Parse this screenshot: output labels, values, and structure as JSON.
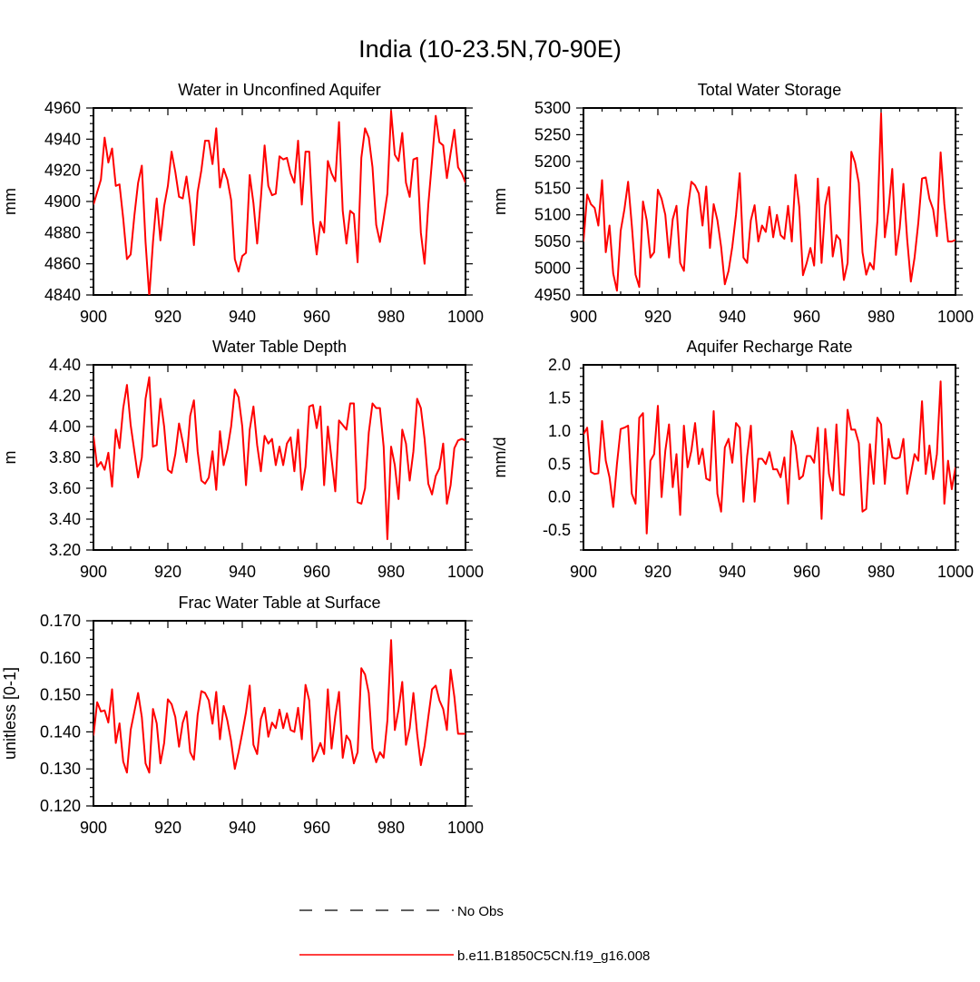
{
  "figure": {
    "title": "India (10-23.5N,70-90E)",
    "legend": [
      {
        "label": "No Obs",
        "color": "#000000",
        "style": "dashed"
      },
      {
        "label": "b.e11.B1850C5CN.f19_g16.008",
        "color": "#ff0000",
        "style": "solid"
      }
    ]
  },
  "chart_data": [
    {
      "type": "line",
      "title": "Water in Unconfined Aquifer",
      "xlabel": "",
      "ylabel": "mm",
      "xlim": [
        900,
        1000
      ],
      "ylim": [
        4840,
        4960
      ],
      "xticks": [
        900,
        920,
        940,
        960,
        980,
        1000
      ],
      "xtick_labels": [
        "900",
        "920",
        "940",
        "960",
        "980",
        "1000"
      ],
      "yticks": [
        4840,
        4860,
        4880,
        4900,
        4920,
        4940,
        4960
      ],
      "ytick_labels": [
        "4840",
        "4860",
        "4880",
        "4900",
        "4920",
        "4940",
        "4960"
      ],
      "x_start": 900,
      "series": [
        {
          "name": "b.e11.B1850C5CN.f19_g16.008",
          "color": "#ff0000",
          "values": [
            4898,
            4906,
            4914,
            4941,
            4925,
            4934,
            4910,
            4911,
            4889,
            4863,
            4866,
            4891,
            4912,
            4923,
            4874,
            4839,
            4874,
            4902,
            4875,
            4897,
            4910,
            4932,
            4919,
            4903,
            4902,
            4916,
            4898,
            4872,
            4906,
            4920,
            4939,
            4939,
            4924,
            4947,
            4909,
            4921,
            4914,
            4901,
            4863,
            4855,
            4865,
            4867,
            4917,
            4899,
            4873,
            4902,
            4936,
            4910,
            4904,
            4905,
            4929,
            4927,
            4928,
            4918,
            4912,
            4939,
            4898,
            4932,
            4932,
            4887,
            4866,
            4887,
            4880,
            4926,
            4918,
            4913,
            4951,
            4894,
            4873,
            4894,
            4892,
            4861,
            4928,
            4947,
            4941,
            4922,
            4885,
            4874,
            4889,
            4905,
            4958,
            4930,
            4926,
            4944,
            4912,
            4903,
            4927,
            4928,
            4880,
            4860,
            4898,
            4926,
            4955,
            4938,
            4936,
            4915,
            4931,
            4946,
            4922,
            4918,
            4912
          ]
        }
      ]
    },
    {
      "type": "line",
      "title": "Total Water Storage",
      "xlabel": "",
      "ylabel": "mm",
      "xlim": [
        900,
        1000
      ],
      "ylim": [
        4950,
        5300
      ],
      "xticks": [
        900,
        920,
        940,
        960,
        980,
        1000
      ],
      "xtick_labels": [
        "900",
        "920",
        "940",
        "960",
        "980",
        "1000"
      ],
      "yticks": [
        4950,
        5000,
        5050,
        5100,
        5150,
        5200,
        5250,
        5300
      ],
      "ytick_labels": [
        "4950",
        "5000",
        "5050",
        "5100",
        "5150",
        "5200",
        "5250",
        "5300"
      ],
      "x_start": 900,
      "series": [
        {
          "name": "b.e11.B1850C5CN.f19_g16.008",
          "color": "#ff0000",
          "values": [
            5050,
            5138,
            5120,
            5113,
            5080,
            5165,
            5030,
            5080,
            4990,
            4958,
            5070,
            5110,
            5162,
            5080,
            4988,
            4965,
            5125,
            5090,
            5020,
            5030,
            5147,
            5130,
            5100,
            5020,
            5092,
            5117,
            5010,
            4995,
            5110,
            5162,
            5155,
            5140,
            5080,
            5153,
            5038,
            5120,
            5090,
            5040,
            4970,
            4995,
            5040,
            5100,
            5178,
            5020,
            5010,
            5090,
            5118,
            5050,
            5080,
            5068,
            5115,
            5058,
            5100,
            5062,
            5055,
            5117,
            5050,
            5175,
            5115,
            4987,
            5010,
            5038,
            5005,
            5168,
            5010,
            5118,
            5152,
            5022,
            5062,
            5053,
            4978,
            5010,
            5218,
            5198,
            5160,
            5030,
            4988,
            5010,
            4998,
            5088,
            5290,
            5058,
            5110,
            5186,
            5025,
            5075,
            5158,
            5055,
            4975,
            5020,
            5085,
            5168,
            5170,
            5130,
            5110,
            5060,
            5217,
            5120,
            5050,
            5050,
            5053
          ]
        }
      ]
    },
    {
      "type": "line",
      "title": "Water Table Depth",
      "xlabel": "",
      "ylabel": "m",
      "xlim": [
        900,
        1000
      ],
      "ylim": [
        3.2,
        4.4
      ],
      "xticks": [
        900,
        920,
        940,
        960,
        980,
        1000
      ],
      "xtick_labels": [
        "900",
        "920",
        "940",
        "960",
        "980",
        "1000"
      ],
      "yticks": [
        3.2,
        3.4,
        3.6,
        3.8,
        4.0,
        4.2,
        4.4
      ],
      "ytick_labels": [
        "3.20",
        "3.40",
        "3.60",
        "3.80",
        "4.00",
        "4.20",
        "4.40"
      ],
      "x_start": 900,
      "series": [
        {
          "name": "b.e11.B1850C5CN.f19_g16.008",
          "color": "#ff0000",
          "values": [
            3.94,
            3.74,
            3.77,
            3.72,
            3.83,
            3.61,
            3.98,
            3.86,
            4.12,
            4.27,
            4.01,
            3.84,
            3.67,
            3.8,
            4.18,
            4.32,
            3.87,
            3.88,
            4.18,
            4.0,
            3.72,
            3.7,
            3.82,
            4.02,
            3.9,
            3.77,
            4.07,
            4.17,
            3.84,
            3.65,
            3.63,
            3.67,
            3.84,
            3.59,
            3.97,
            3.75,
            3.85,
            4.0,
            4.24,
            4.19,
            4.0,
            3.62,
            3.98,
            4.13,
            3.88,
            3.71,
            3.94,
            3.89,
            3.92,
            3.75,
            3.87,
            3.75,
            3.89,
            3.93,
            3.71,
            3.98,
            3.59,
            3.74,
            4.13,
            4.14,
            3.99,
            4.13,
            3.62,
            4.0,
            3.79,
            3.58,
            4.04,
            4.01,
            3.98,
            4.15,
            4.15,
            3.51,
            3.5,
            3.6,
            3.96,
            4.15,
            4.12,
            4.12,
            3.87,
            3.27,
            3.87,
            3.75,
            3.53,
            3.98,
            3.89,
            3.65,
            3.84,
            4.18,
            4.12,
            3.92,
            3.63,
            3.56,
            3.68,
            3.73,
            3.89,
            3.5,
            3.62,
            3.86,
            3.91,
            3.92,
            3.91
          ]
        }
      ]
    },
    {
      "type": "line",
      "title": "Aquifer Recharge Rate",
      "xlabel": "",
      "ylabel": "mm/d",
      "xlim": [
        900,
        1000
      ],
      "ylim": [
        -0.8,
        2.0
      ],
      "xticks": [
        900,
        920,
        940,
        960,
        980,
        1000
      ],
      "xtick_labels": [
        "900",
        "920",
        "940",
        "960",
        "980",
        "1000"
      ],
      "yticks": [
        -0.5,
        0.0,
        0.5,
        1.0,
        1.5,
        2.0
      ],
      "ytick_labels": [
        "-0.5",
        "0.0",
        "0.5",
        "1.0",
        "1.5",
        "2.0"
      ],
      "x_start": 900,
      "series": [
        {
          "name": "b.e11.B1850C5CN.f19_g16.008",
          "color": "#ff0000",
          "values": [
            0.95,
            1.05,
            0.38,
            0.35,
            0.36,
            1.15,
            0.55,
            0.3,
            -0.15,
            0.5,
            1.03,
            1.05,
            1.08,
            0.05,
            -0.1,
            1.2,
            1.27,
            -0.55,
            0.55,
            0.65,
            1.38,
            0.0,
            0.7,
            1.1,
            0.15,
            0.65,
            -0.27,
            1.08,
            0.45,
            0.7,
            1.12,
            0.5,
            0.73,
            0.28,
            0.25,
            1.3,
            0.05,
            -0.22,
            0.75,
            0.88,
            0.52,
            1.12,
            1.05,
            -0.07,
            0.62,
            1.08,
            -0.07,
            0.58,
            0.58,
            0.5,
            0.68,
            0.42,
            0.42,
            0.3,
            0.6,
            -0.1,
            1.0,
            0.78,
            0.27,
            0.32,
            0.62,
            0.62,
            0.52,
            1.05,
            -0.33,
            1.03,
            0.35,
            0.1,
            1.1,
            0.05,
            0.03,
            1.32,
            1.02,
            1.02,
            0.82,
            -0.22,
            -0.18,
            0.8,
            0.2,
            1.2,
            1.1,
            0.2,
            0.88,
            0.6,
            0.58,
            0.6,
            0.88,
            0.05,
            0.35,
            0.65,
            0.55,
            1.45,
            0.35,
            0.78,
            0.27,
            0.65,
            1.75,
            -0.1,
            0.55,
            0.12,
            0.45
          ]
        }
      ]
    },
    {
      "type": "line",
      "title": "Frac Water Table at Surface",
      "xlabel": "",
      "ylabel": "unitless [0-1]",
      "xlim": [
        900,
        1000
      ],
      "ylim": [
        0.12,
        0.17
      ],
      "xticks": [
        900,
        920,
        940,
        960,
        980,
        1000
      ],
      "xtick_labels": [
        "900",
        "920",
        "940",
        "960",
        "980",
        "1000"
      ],
      "yticks": [
        0.12,
        0.13,
        0.14,
        0.15,
        0.16,
        0.17
      ],
      "ytick_labels": [
        "0.120",
        "0.130",
        "0.140",
        "0.150",
        "0.160",
        "0.170"
      ],
      "x_start": 900,
      "series": [
        {
          "name": "b.e11.B1850C5CN.f19_g16.008",
          "color": "#ff0000",
          "values": [
            0.139,
            0.148,
            0.1455,
            0.1458,
            0.1425,
            0.1515,
            0.137,
            0.1423,
            0.132,
            0.129,
            0.1405,
            0.1455,
            0.1505,
            0.144,
            0.1315,
            0.129,
            0.1462,
            0.1423,
            0.1315,
            0.137,
            0.1488,
            0.1475,
            0.144,
            0.136,
            0.1425,
            0.1455,
            0.1345,
            0.1325,
            0.1445,
            0.151,
            0.1505,
            0.1485,
            0.1422,
            0.1508,
            0.138,
            0.147,
            0.143,
            0.1375,
            0.13,
            0.1345,
            0.1397,
            0.1453,
            0.1525,
            0.1365,
            0.134,
            0.1435,
            0.1465,
            0.1387,
            0.1425,
            0.141,
            0.146,
            0.141,
            0.145,
            0.1405,
            0.14,
            0.1465,
            0.138,
            0.1527,
            0.1485,
            0.132,
            0.1343,
            0.137,
            0.134,
            0.1515,
            0.1355,
            0.1442,
            0.1508,
            0.133,
            0.139,
            0.1375,
            0.1315,
            0.1345,
            0.1572,
            0.1555,
            0.1505,
            0.1355,
            0.1318,
            0.1345,
            0.133,
            0.143,
            0.1648,
            0.1405,
            0.146,
            0.1535,
            0.1365,
            0.141,
            0.1505,
            0.1395,
            0.131,
            0.1362,
            0.144,
            0.1515,
            0.1525,
            0.1485,
            0.1462,
            0.1405,
            0.1568,
            0.1495,
            0.1395,
            0.1395,
            0.1395
          ]
        }
      ]
    }
  ]
}
